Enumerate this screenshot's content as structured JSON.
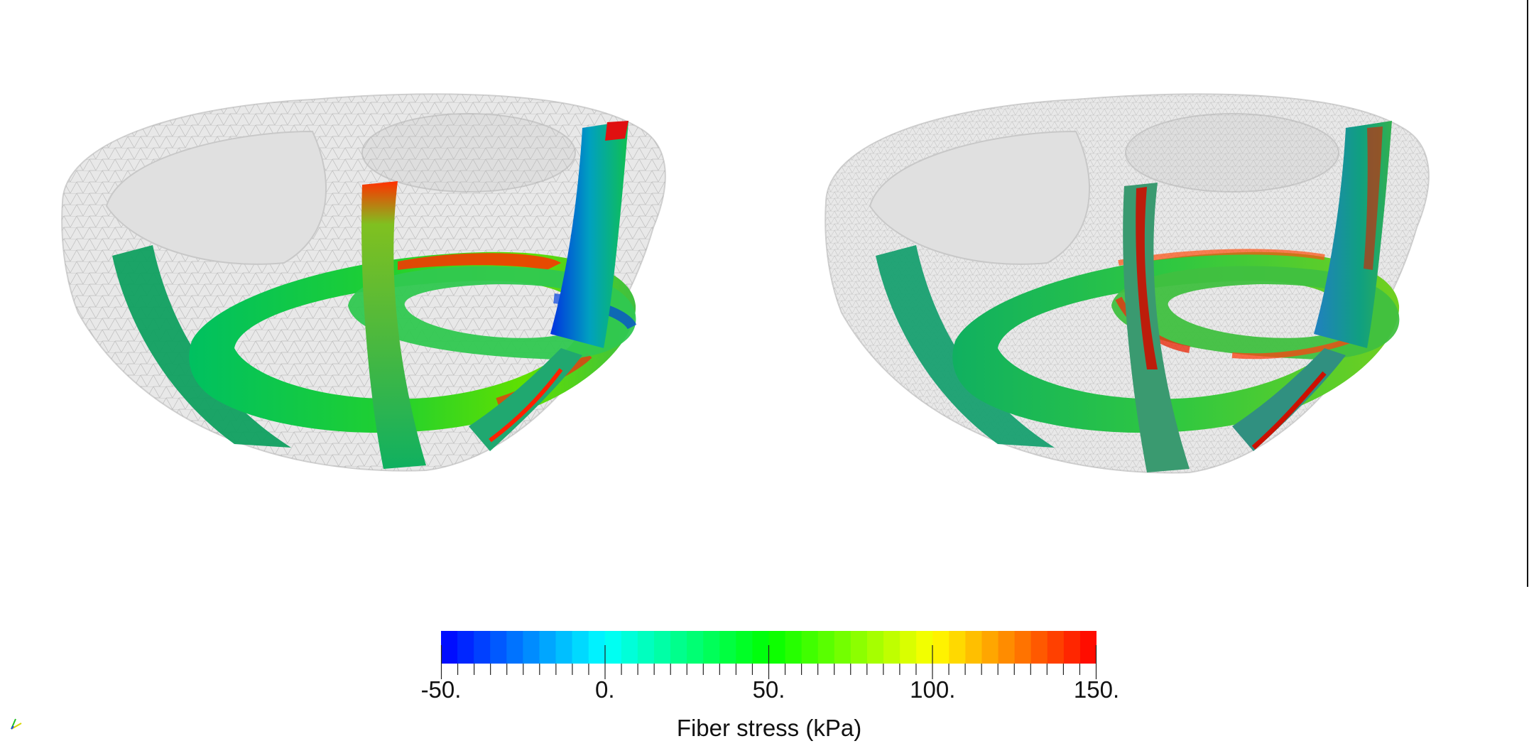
{
  "colorbar": {
    "title": "Fiber stress (kPa)",
    "min": -50,
    "max": 150,
    "ticks": [
      {
        "value": -50,
        "label": "-50."
      },
      {
        "value": 0,
        "label": "0."
      },
      {
        "value": 50,
        "label": "50."
      },
      {
        "value": 100,
        "label": "100."
      },
      {
        "value": 150,
        "label": "150."
      }
    ],
    "colors": [
      "#0000ff",
      "#00ffff",
      "#00ff00",
      "#ffff00",
      "#ff0000"
    ]
  },
  "views": [
    {
      "name": "left-heart-view"
    },
    {
      "name": "right-heart-view"
    }
  ],
  "mesh_color": "#e6e6e6"
}
